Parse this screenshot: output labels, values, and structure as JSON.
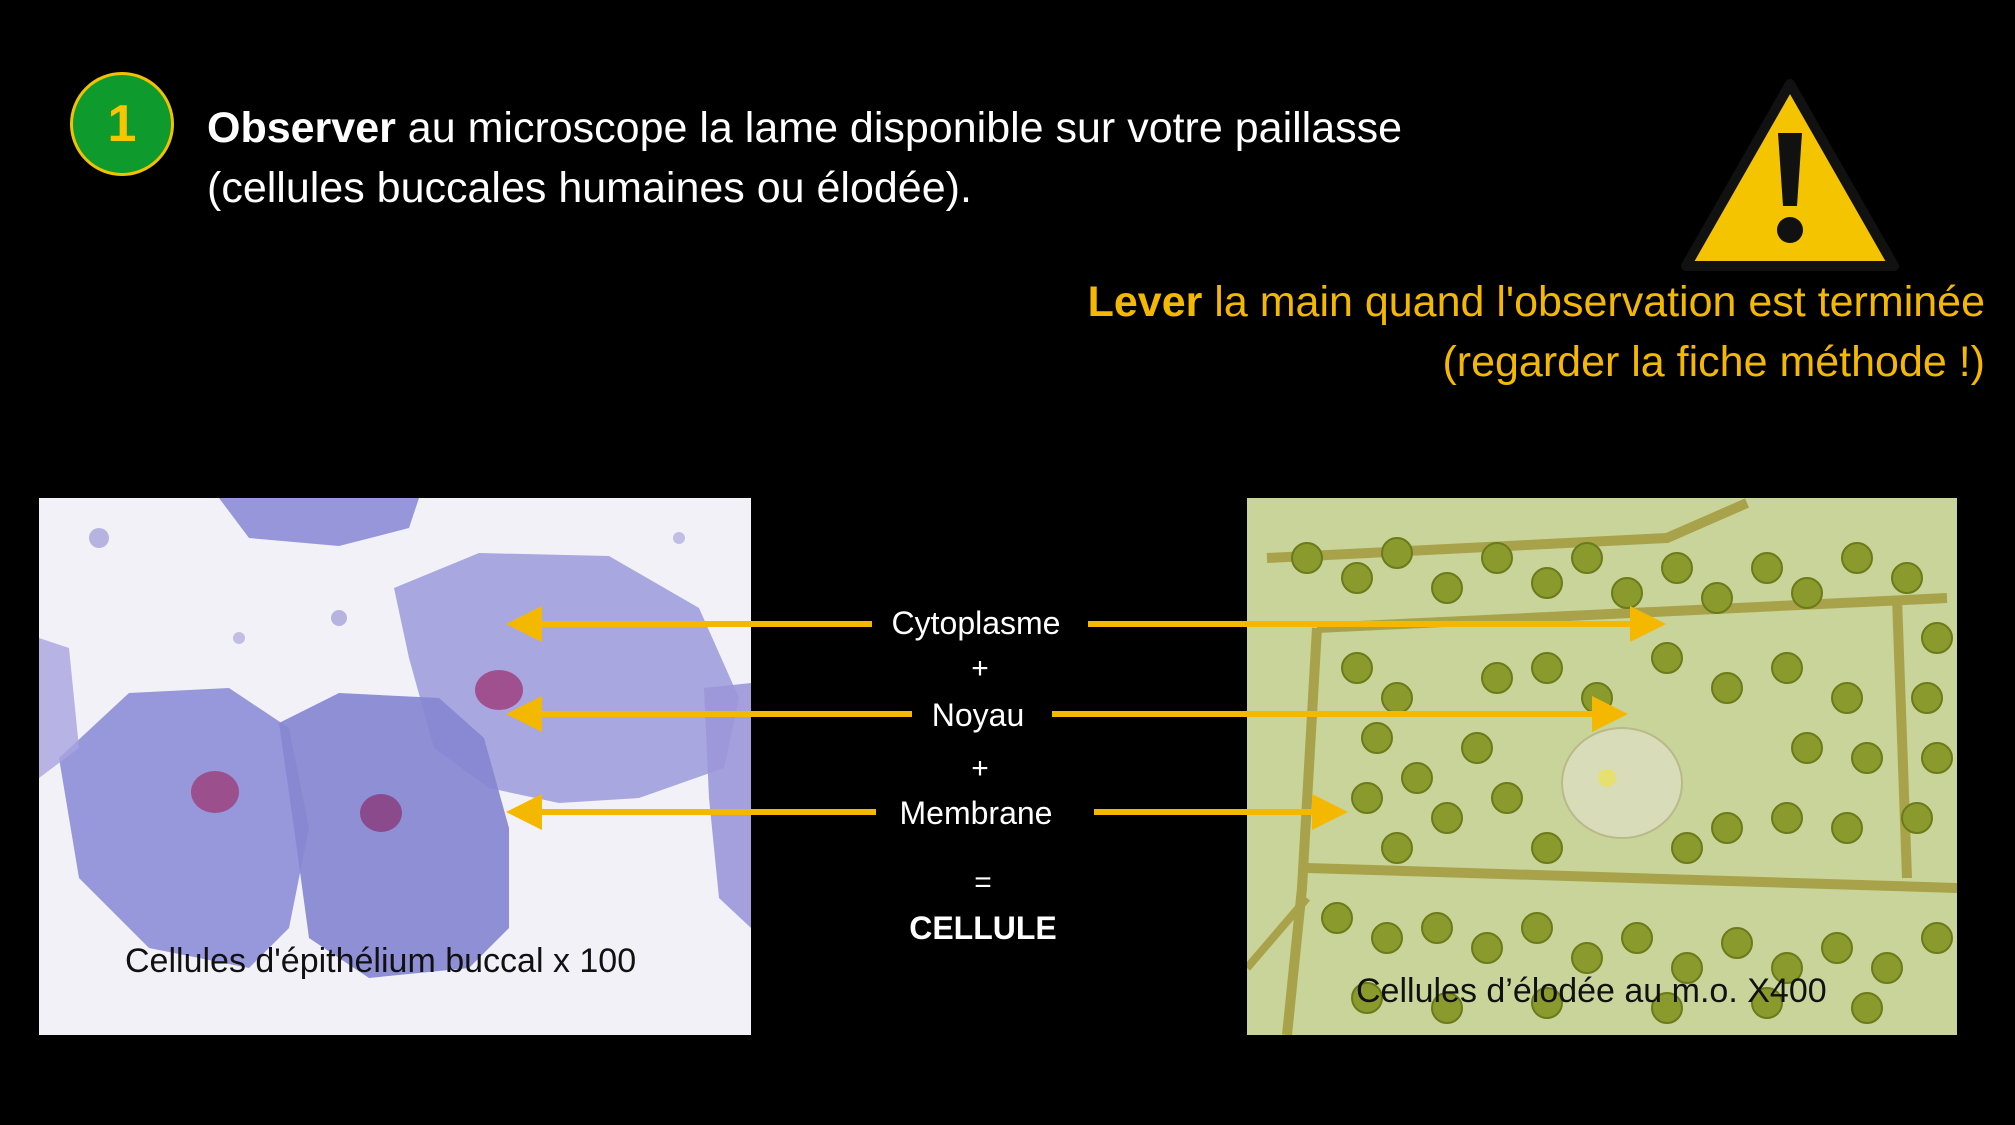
{
  "step": {
    "number": "1"
  },
  "instruction": {
    "verb": "Observer",
    "rest_line1": " au microscope la lame disponible sur votre paillasse",
    "line2": "(cellules buccales humaines ou élodée)."
  },
  "warning": {
    "icon": "warning-triangle-icon",
    "verb": "Lever",
    "rest_line1": " la main quand l'observation est terminée",
    "line2": "(regarder la fiche méthode !)"
  },
  "left_image": {
    "caption": "Cellules d'épithélium buccal x 100"
  },
  "right_image": {
    "caption": "Cellules d’élodée au m.o. X400"
  },
  "equation": {
    "cytoplasme": "Cytoplasme",
    "plus1": "+",
    "noyau": "Noyau",
    "plus2": "+",
    "membrane": "Membrane",
    "equals": "=",
    "result": "CELLULE"
  },
  "colors": {
    "accent": "#f5b800",
    "badge_green": "#0f9a2e",
    "background": "#000000"
  }
}
